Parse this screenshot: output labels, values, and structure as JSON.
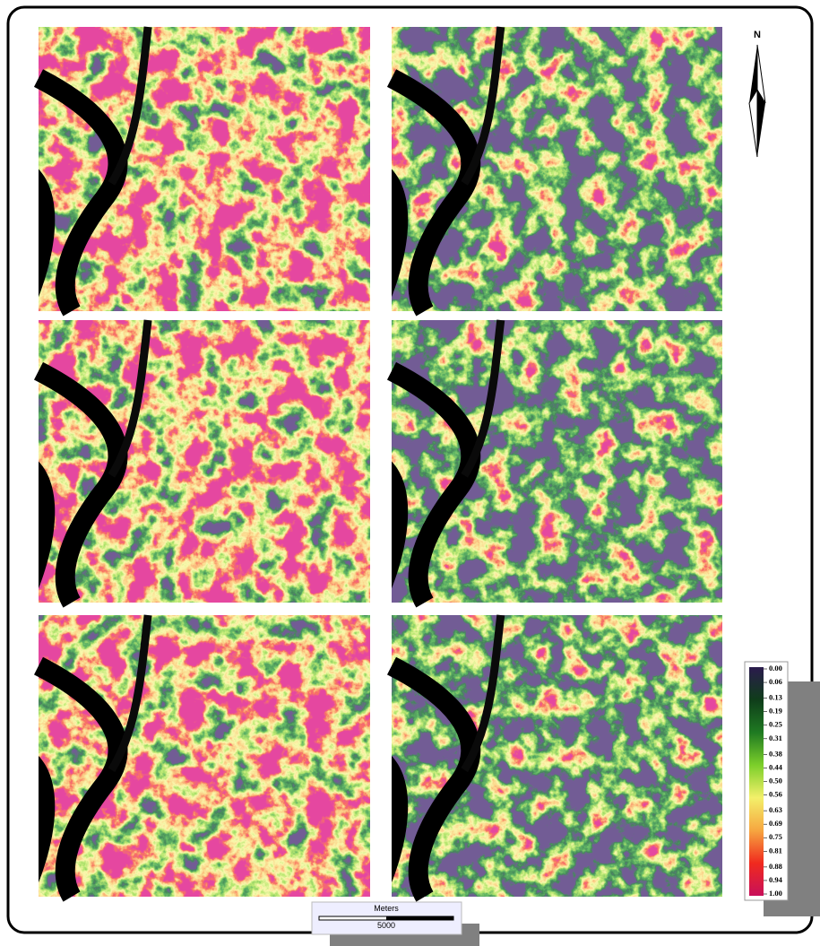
{
  "north_label": "N",
  "legend": {
    "colormap": [
      "#2b1b4d",
      "#0f3d1a",
      "#1f7a22",
      "#7ccf2a",
      "#f3f06a",
      "#f6a640",
      "#f02a1e",
      "#c8105a"
    ],
    "ticks": [
      {
        "value": 0,
        "label": "0.00"
      },
      0.06,
      0.13,
      0.19,
      0.25,
      0.31,
      0.38,
      0.44,
      {
        "value": 0.5,
        "label": "0.50"
      },
      0.56,
      0.63,
      0.69,
      0.75,
      0.81,
      0.88,
      0.94,
      {
        "value": 1,
        "label": "1.00"
      }
    ]
  },
  "scale_bar": {
    "unit": "Meters",
    "distance": 5000
  }
}
